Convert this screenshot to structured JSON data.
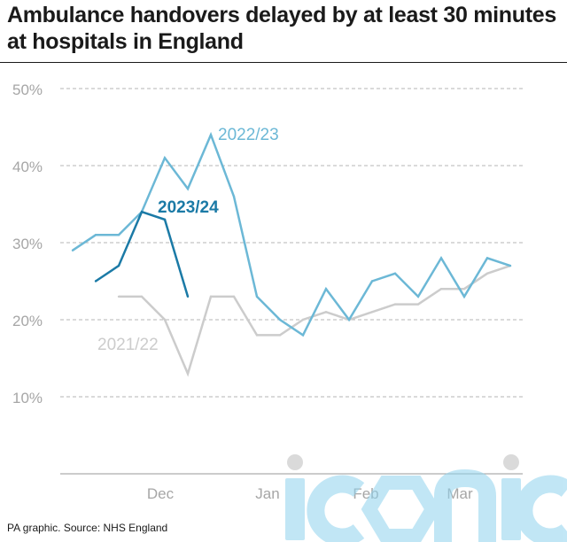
{
  "title": "Ambulance handovers delayed by at least 30 minutes at hospitals in England",
  "source": "PA graphic. Source: NHS England",
  "watermark_text": "iconic",
  "colors": {
    "series_2022_23": "#6cb8d6",
    "series_2023_24": "#1b7aa6",
    "series_2021_22": "#cccccc",
    "grid": "#b5b5b5",
    "axis_text": "#a6a6a6"
  },
  "chart_data": {
    "type": "line",
    "x_labels": [
      "Dec",
      "Jan",
      "Feb",
      "Mar"
    ],
    "ylim": [
      0,
      50
    ],
    "yticks": [
      10,
      20,
      30,
      40,
      50
    ],
    "ytick_labels": [
      "10%",
      "20%",
      "30%",
      "40%",
      "50%"
    ],
    "grid": "horizontal dashed",
    "series": [
      {
        "name": "2022/23",
        "values": [
          29,
          31,
          31,
          34,
          41,
          37,
          44,
          36,
          23,
          20,
          18,
          24,
          20,
          25,
          26,
          23,
          28,
          23,
          28,
          27
        ]
      },
      {
        "name": "2023/24",
        "values": [
          25,
          27,
          34,
          33,
          23
        ]
      },
      {
        "name": "2021/22",
        "values": [
          23,
          23,
          20,
          13,
          23,
          23,
          18,
          18,
          20,
          21,
          20,
          21,
          22,
          22,
          24,
          24,
          26,
          27
        ]
      }
    ]
  }
}
